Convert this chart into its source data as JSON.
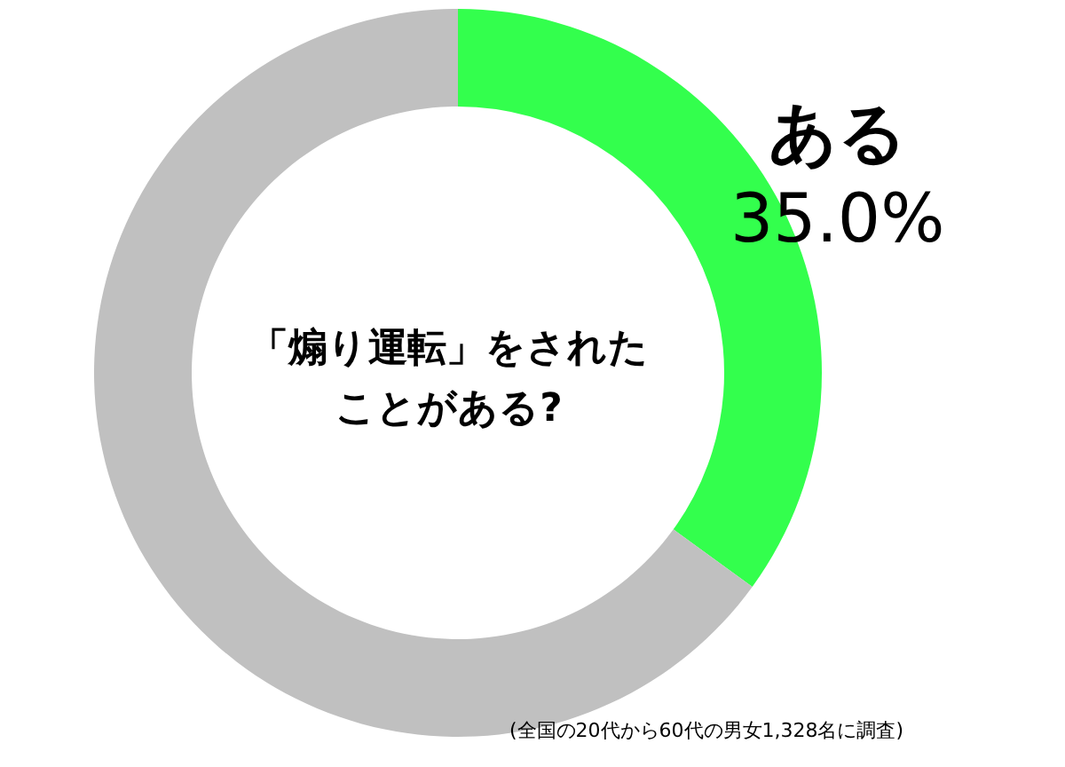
{
  "chart_data": {
    "type": "donut",
    "title": "「煽り運転」をされたことがある?",
    "categories": [
      "ある",
      null
    ],
    "values": [
      35.0,
      65.0
    ],
    "colors": [
      "#33ff4d",
      "#c0c0c0"
    ],
    "value_labels": [
      "35.0%",
      null
    ],
    "annotations": [
      "(全国の20代から60代の男女1,328名に調査)"
    ]
  }
}
